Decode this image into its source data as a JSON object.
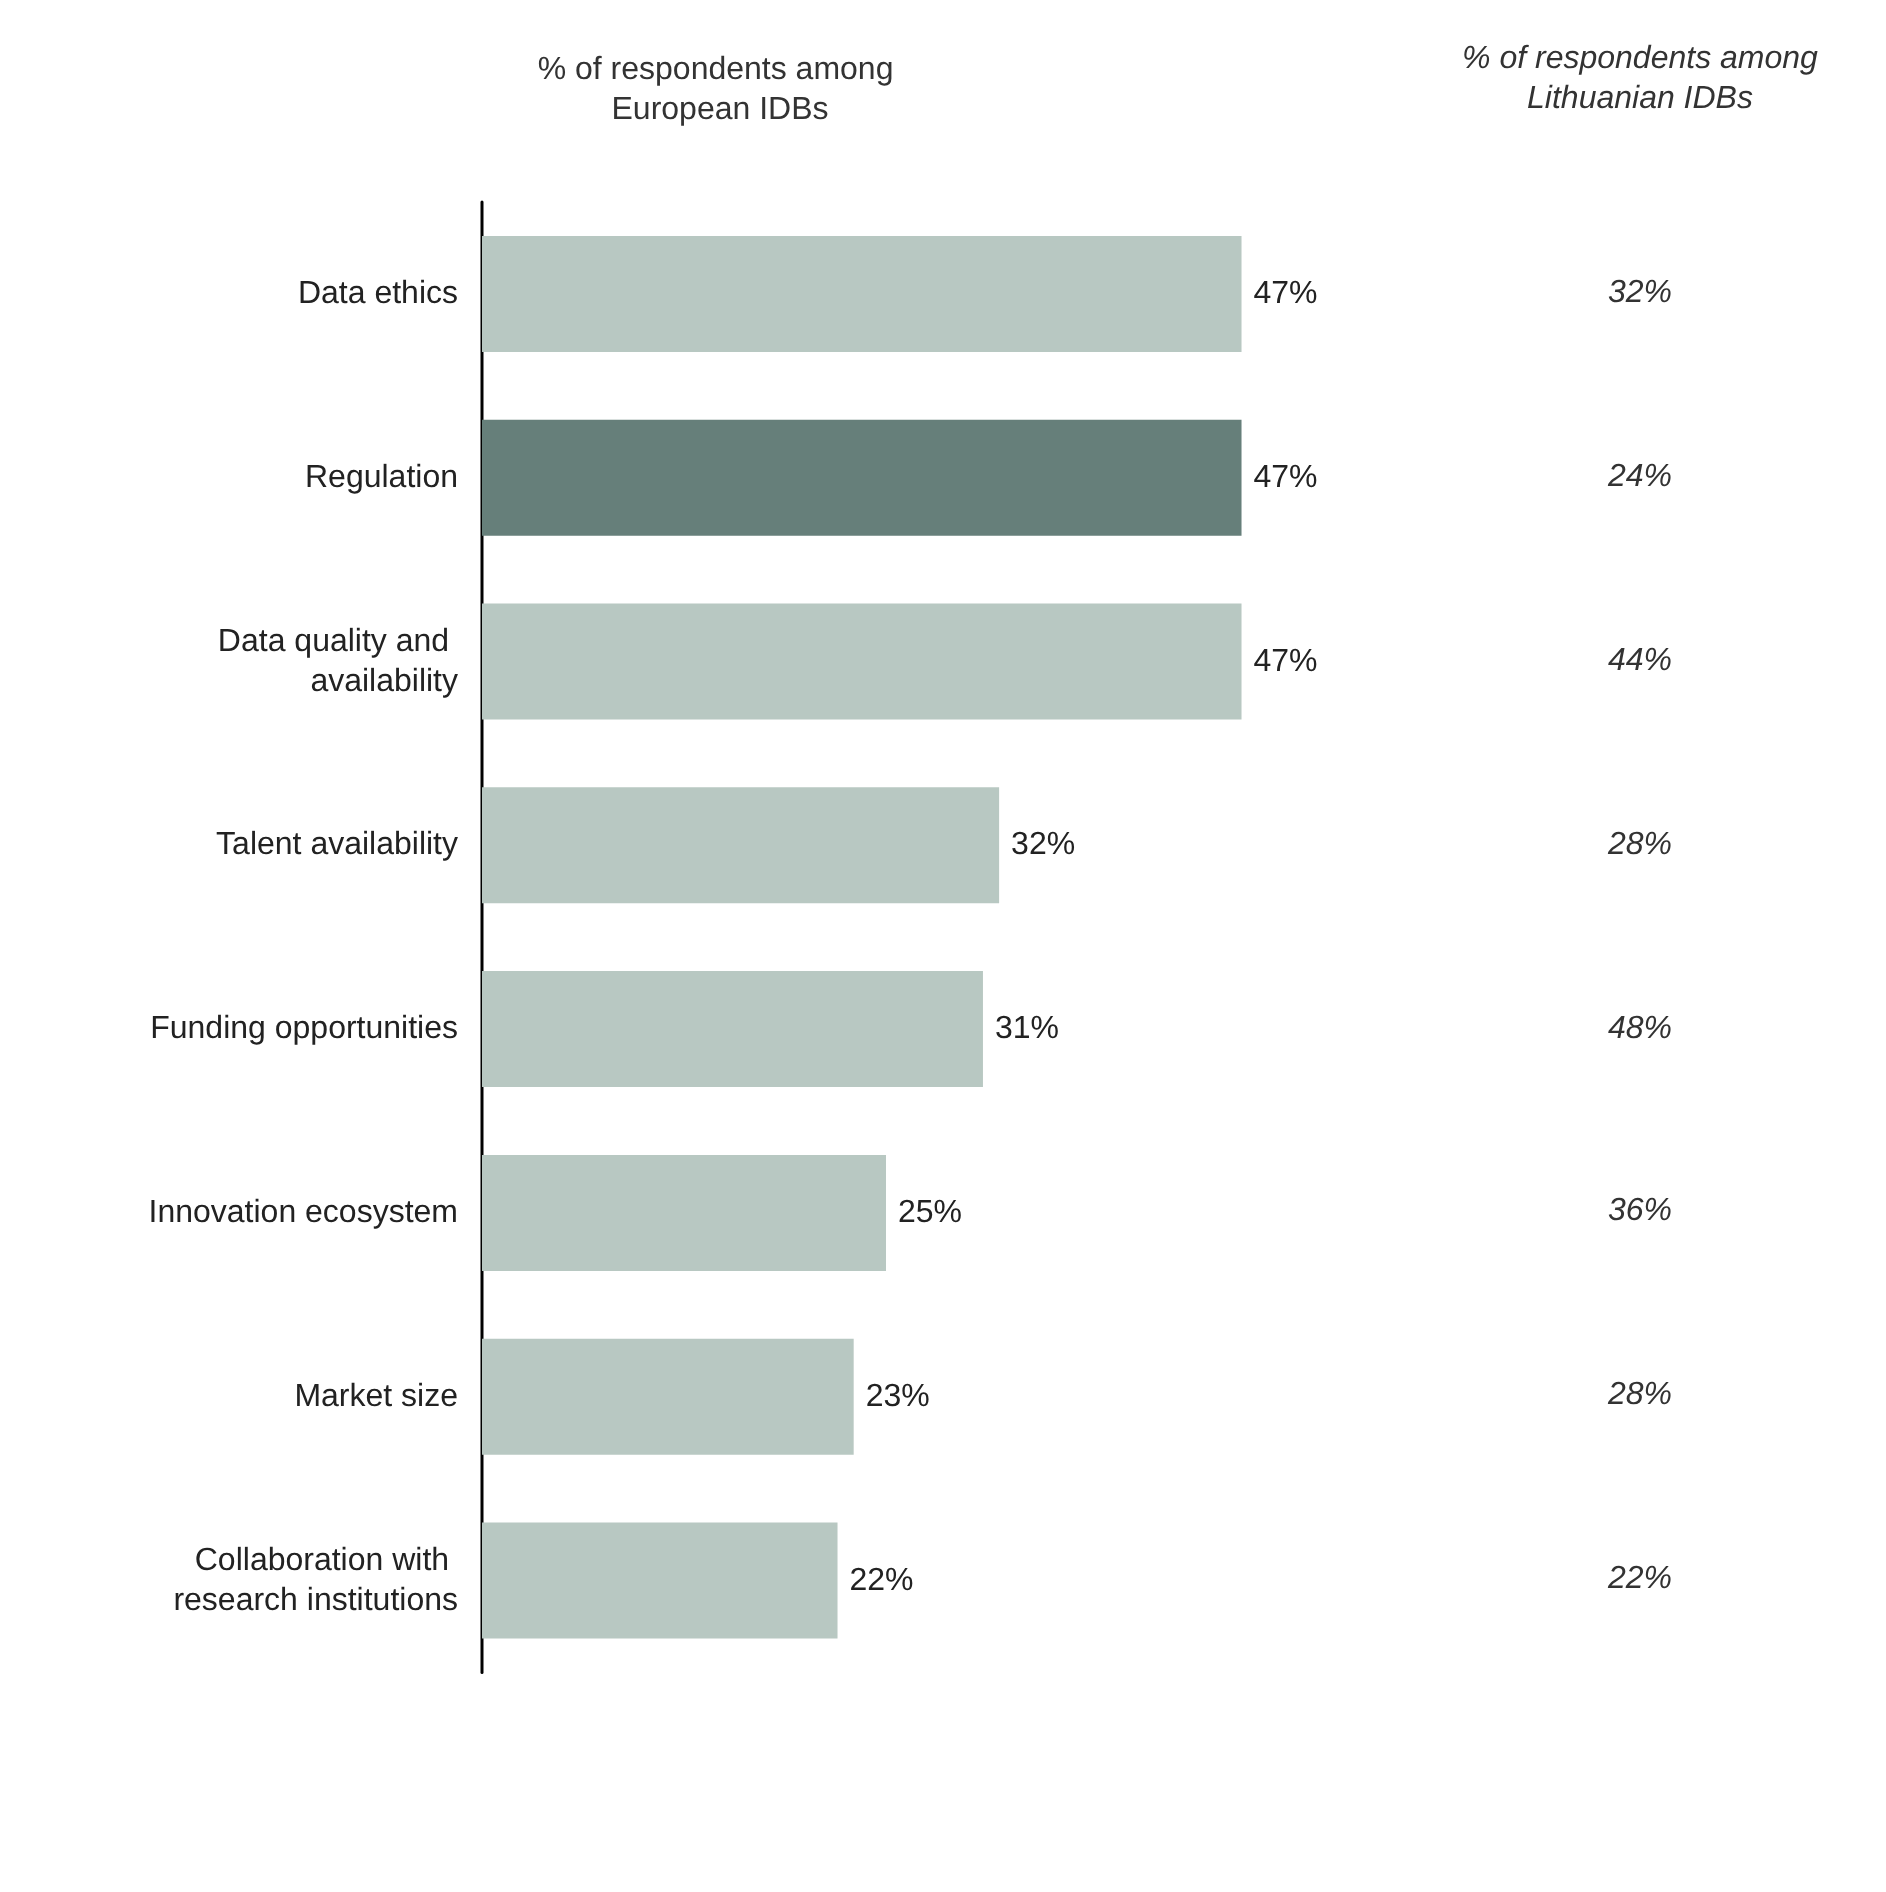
{
  "chart_data": [
    {
      "type": "bar",
      "orientation": "horizontal",
      "title": "% of respondents among European IDBs",
      "categories": [
        "Data ethics",
        "Regulation",
        "Data quality and availability",
        "Talent availability",
        "Funding opportunities",
        "Innovation ecosystem",
        "Market size",
        "Collaboration with research institutions"
      ],
      "values": [
        47,
        47,
        47,
        32,
        31,
        25,
        23,
        22
      ],
      "colors": [
        "#b8c8c2",
        "#667f7a",
        "#b8c8c2",
        "#b8c8c2",
        "#b8c8c2",
        "#b8c8c2",
        "#b8c8c2",
        "#b8c8c2"
      ],
      "value_labels": [
        "47%",
        "47%",
        "47%",
        "32%",
        "31%",
        "25%",
        "23%",
        "22%"
      ]
    },
    {
      "type": "other",
      "title": "% of respondents among Lithuanian IDBs",
      "annotations": [
        "32%",
        "24%",
        "44%",
        "28%",
        "48%",
        "36%",
        "28%",
        "22%"
      ]
    }
  ]
}
